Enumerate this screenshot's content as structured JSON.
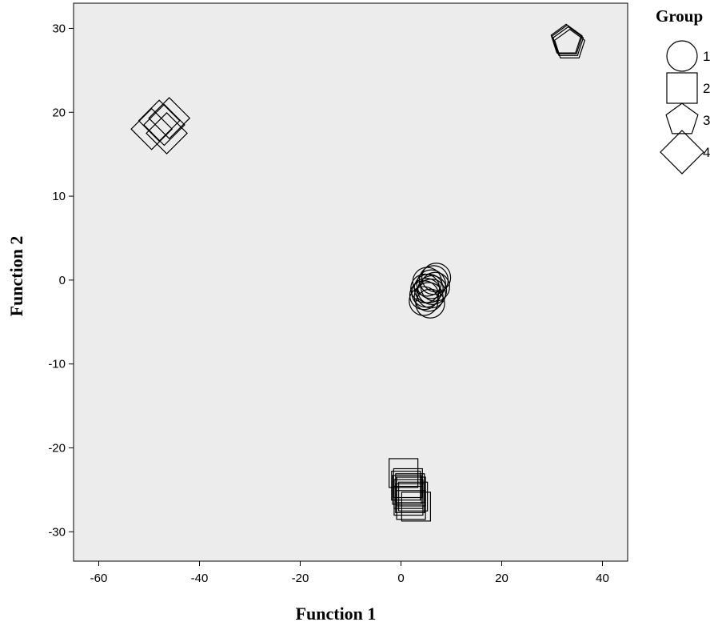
{
  "chart_data": {
    "type": "scatter",
    "xlabel": "Function 1",
    "ylabel": "Function 2",
    "xlim": [
      -65,
      45
    ],
    "ylim": [
      -33.5,
      33
    ],
    "x_ticks": [
      -60,
      -40,
      -20,
      0,
      20,
      40
    ],
    "y_ticks": [
      -30,
      -20,
      -10,
      0,
      10,
      20,
      30
    ],
    "grid": false,
    "background": "#ececec",
    "legend": {
      "title": "Group",
      "placement": "right",
      "entries": [
        {
          "label": "1",
          "marker": "circle"
        },
        {
          "label": "2",
          "marker": "square"
        },
        {
          "label": "3",
          "marker": "pentagon"
        },
        {
          "label": "4",
          "marker": "diamond"
        }
      ]
    },
    "series": [
      {
        "name": "1",
        "marker": "circle",
        "points": [
          [
            4.5,
            -2.5
          ],
          [
            5.0,
            -1.5
          ],
          [
            5.5,
            -1.0
          ],
          [
            6.0,
            -0.5
          ],
          [
            6.5,
            0.0
          ],
          [
            7.0,
            0.3
          ],
          [
            5.5,
            -2.0
          ],
          [
            4.8,
            -1.0
          ],
          [
            6.2,
            -1.2
          ],
          [
            5.2,
            -0.2
          ],
          [
            6.8,
            -0.8
          ],
          [
            4.6,
            -1.8
          ],
          [
            5.8,
            -2.8
          ],
          [
            6.0,
            -1.6
          ]
        ]
      },
      {
        "name": "2",
        "marker": "square",
        "points": [
          [
            0.5,
            -23.0
          ],
          [
            1.0,
            -24.5
          ],
          [
            1.2,
            -25.0
          ],
          [
            1.5,
            -25.5
          ],
          [
            1.8,
            -26.0
          ],
          [
            2.0,
            -25.2
          ],
          [
            1.4,
            -24.2
          ],
          [
            2.0,
            -26.8
          ],
          [
            3.0,
            -27.0
          ],
          [
            1.5,
            -26.3
          ],
          [
            2.4,
            -25.8
          ],
          [
            1.8,
            -24.8
          ]
        ]
      },
      {
        "name": "3",
        "marker": "pentagon",
        "points": [
          [
            32.8,
            28.6
          ],
          [
            33.2,
            28.3
          ],
          [
            33.5,
            28.0
          ],
          [
            33.0,
            28.5
          ]
        ]
      },
      {
        "name": "4",
        "marker": "diamond",
        "points": [
          [
            -49.5,
            18.0
          ],
          [
            -48.0,
            19.0
          ],
          [
            -47.0,
            18.5
          ],
          [
            -46.5,
            17.5
          ],
          [
            -46.0,
            19.3
          ]
        ]
      }
    ]
  }
}
